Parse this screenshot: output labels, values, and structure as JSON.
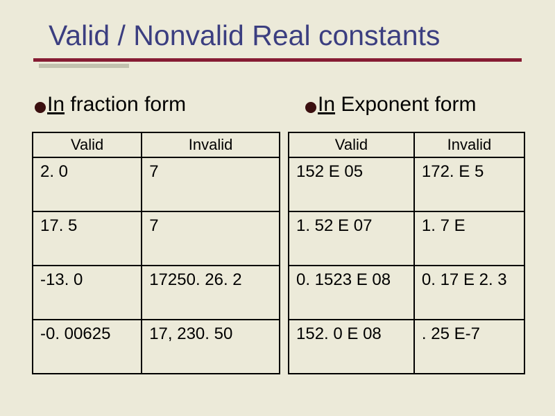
{
  "slide": {
    "title": "Valid / Nonvalid Real constants",
    "title_color": "#3b3e80",
    "underline_color": "#861c33",
    "background_color": "#ecead9"
  },
  "headings": {
    "left_prefix": "In",
    "left_rest": " fraction form",
    "right_prefix": "In",
    "right_rest": " Exponent form"
  },
  "left_table": {
    "headers": [
      "Valid",
      "Invalid"
    ],
    "rows": [
      [
        "2. 0",
        "7"
      ],
      [
        "17. 5",
        "7"
      ],
      [
        "-13. 0",
        "17250. 26. 2"
      ],
      [
        "-0. 00625",
        "17, 230. 50"
      ]
    ]
  },
  "right_table": {
    "headers": [
      "Valid",
      "Invalid"
    ],
    "rows": [
      [
        "152 E 05",
        "172. E 5"
      ],
      [
        "1. 52 E 07",
        "1. 7 E"
      ],
      [
        "0. 1523 E 08",
        "0. 17 E 2. 3"
      ],
      [
        "152. 0 E 08",
        ". 25 E-7"
      ]
    ]
  }
}
